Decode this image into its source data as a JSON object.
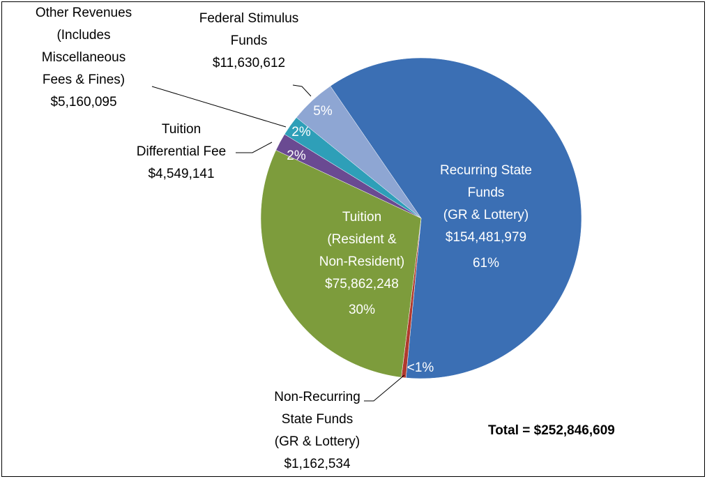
{
  "chart_data": {
    "type": "pie",
    "categories": [
      "Recurring State\nFunds\n(GR & Lottery)",
      "Non-Recurring\nState Funds\n(GR & Lottery)",
      "Tuition\n(Resident &\nNon-Resident)",
      "Tuition\nDifferential Fee",
      "Other Revenues\n(Includes\nMiscellaneous\nFees & Fines)",
      "Federal Stimulus\nFunds"
    ],
    "values": [
      154481979,
      1162534,
      75862248,
      4549141,
      5160095,
      11630612
    ],
    "value_labels": [
      "$154,481,979",
      "$1,162,534",
      "$75,862,248",
      "$4,549,141",
      "$5,160,095",
      "$11,630,612"
    ],
    "percent_labels": [
      "61%",
      "<1%",
      "30%",
      "2%",
      "2%",
      "5%"
    ],
    "colors": [
      "#3b6fb4",
      "#b03a2e",
      "#7d9c3c",
      "#6a4a92",
      "#2e9fb8",
      "#8ea6d3"
    ],
    "annotations": [
      "Total = $252,846,609"
    ]
  }
}
